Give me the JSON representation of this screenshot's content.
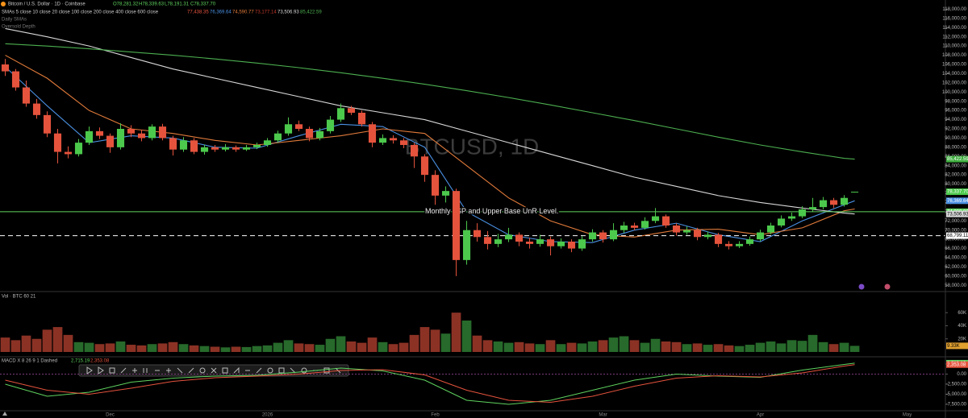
{
  "header": {
    "symbol": "Bitcoin / U.S. Dollar · 1D · Coinbase",
    "ohlc_labels": [
      "O78,281.32",
      "H78,339.63",
      "L78,191.31",
      "C78,337.70"
    ],
    "sma_caption": "SMAs 5 close 10 close 20 close 100 close 200 close 400 close 600 close",
    "sma_values": [
      "77,438.35",
      "76,369.64",
      "74,590.77",
      "73,177.14",
      "73,506.93",
      "85,422.59"
    ],
    "line3": "Daily SMAs",
    "line4": "Oversold Depth",
    "watermark": "BTCUSD, 1D"
  },
  "chart_data": [
    {
      "type": "candlestick",
      "xlim": [
        -0.5,
        89.65
      ],
      "ylim": [
        57000,
        120000
      ],
      "xticks": [
        {
          "value": 10,
          "label": "Dec"
        },
        {
          "value": 25,
          "label": "2026"
        },
        {
          "value": 41,
          "label": "Feb"
        },
        {
          "value": 57,
          "label": "Mar"
        },
        {
          "value": 72,
          "label": "Apr"
        },
        {
          "value": 86,
          "label": "May"
        }
      ],
      "yticks": [
        {
          "value": 58000,
          "label": "58,000.00"
        },
        {
          "value": 60000,
          "label": "60,000.00"
        },
        {
          "value": 62000,
          "label": "62,000.00"
        },
        {
          "value": 64000,
          "label": "64,000.00"
        },
        {
          "value": 66000,
          "label": "66,000.00"
        },
        {
          "value": 68000,
          "label": "68,000.00"
        },
        {
          "value": 70000,
          "label": "70,000.00"
        },
        {
          "value": 72000,
          "label": "72,000.00"
        },
        {
          "value": 74000,
          "label": "74,000.00"
        },
        {
          "value": 76000,
          "label": "76,000.00"
        },
        {
          "value": 78000,
          "label": "78,000.00"
        },
        {
          "value": 80000,
          "label": "80,000.00"
        },
        {
          "value": 82000,
          "label": "82,000.00"
        },
        {
          "value": 84000,
          "label": "84,000.00"
        },
        {
          "value": 86000,
          "label": "86,000.00"
        },
        {
          "value": 88000,
          "label": "88,000.00"
        },
        {
          "value": 90000,
          "label": "90,000.00"
        },
        {
          "value": 92000,
          "label": "92,000.00"
        },
        {
          "value": 94000,
          "label": "94,000.00"
        },
        {
          "value": 96000,
          "label": "96,000.00"
        },
        {
          "value": 98000,
          "label": "98,000.00"
        },
        {
          "value": 100000,
          "label": "100,000.00"
        },
        {
          "value": 102000,
          "label": "102,000.00"
        },
        {
          "value": 104000,
          "label": "104,000.00"
        },
        {
          "value": 106000,
          "label": "106,000.00"
        },
        {
          "value": 108000,
          "label": "108,000.00"
        },
        {
          "value": 110000,
          "label": "110,000.00"
        },
        {
          "value": 112000,
          "label": "112,000.00"
        },
        {
          "value": 114000,
          "label": "114,000.00"
        },
        {
          "value": 116000,
          "label": "116,000.00"
        },
        {
          "value": 118000,
          "label": "118,000.00"
        }
      ],
      "up_color": "#4cc94c",
      "down_color": "#e5533d",
      "ohlc": [
        [
          106000,
          107200,
          103500,
          104500
        ],
        [
          104500,
          105000,
          100300,
          101000
        ],
        [
          101000,
          102500,
          96800,
          97500
        ],
        [
          97500,
          98500,
          94200,
          95000
        ],
        [
          95000,
          95800,
          90200,
          91000
        ],
        [
          91000,
          92000,
          84500,
          87000
        ],
        [
          87000,
          88200,
          85600,
          86500
        ],
        [
          86500,
          89800,
          86000,
          89000
        ],
        [
          89000,
          92500,
          88500,
          91500
        ],
        [
          91500,
          92300,
          89800,
          90500
        ],
        [
          90500,
          91000,
          86800,
          88000
        ],
        [
          88000,
          93200,
          87500,
          92000
        ],
        [
          92000,
          92800,
          90200,
          91000
        ],
        [
          91000,
          91800,
          89300,
          90000
        ],
        [
          90000,
          93000,
          89500,
          92500
        ],
        [
          92500,
          93100,
          89500,
          90000
        ],
        [
          90000,
          90500,
          86200,
          87500
        ],
        [
          87500,
          90200,
          87000,
          89500
        ],
        [
          89500,
          90000,
          86500,
          87000
        ],
        [
          87000,
          88600,
          86400,
          88000
        ],
        [
          88000,
          88500,
          87000,
          87500
        ],
        [
          87500,
          88700,
          87100,
          88000
        ],
        [
          88000,
          88400,
          87000,
          87500
        ],
        [
          87500,
          88500,
          87200,
          88000
        ],
        [
          88000,
          89000,
          87600,
          88500
        ],
        [
          88500,
          90000,
          88100,
          89500
        ],
        [
          89500,
          91600,
          89000,
          91000
        ],
        [
          91000,
          94500,
          90500,
          93000
        ],
        [
          93000,
          93800,
          91500,
          92000
        ],
        [
          92000,
          92500,
          89300,
          90000
        ],
        [
          90000,
          92200,
          89500,
          91500
        ],
        [
          91500,
          94800,
          91000,
          94000
        ],
        [
          94000,
          97500,
          93500,
          96500
        ],
        [
          96500,
          97000,
          95000,
          95500
        ],
        [
          95500,
          96000,
          92500,
          93000
        ],
        [
          93000,
          93500,
          88000,
          89000
        ],
        [
          89000,
          90800,
          88500,
          90000
        ],
        [
          90000,
          90600,
          88800,
          89500
        ],
        [
          89500,
          90000,
          87800,
          88500
        ],
        [
          88500,
          89000,
          83500,
          86000
        ],
        [
          86000,
          86500,
          80500,
          82000
        ],
        [
          82000,
          83000,
          75500,
          77500
        ],
        [
          77500,
          79500,
          76000,
          78500
        ],
        [
          78500,
          79000,
          60000,
          63500
        ],
        [
          63500,
          72000,
          62500,
          70000
        ],
        [
          70000,
          71500,
          67500,
          68500
        ],
        [
          68500,
          69800,
          65800,
          67000
        ],
        [
          67000,
          69200,
          66300,
          68000
        ],
        [
          68000,
          70500,
          67400,
          69000
        ],
        [
          69000,
          69500,
          66500,
          67500
        ],
        [
          67500,
          68300,
          66000,
          67000
        ],
        [
          67000,
          69000,
          66400,
          68000
        ],
        [
          68000,
          68600,
          64500,
          66500
        ],
        [
          66500,
          68200,
          66000,
          67500
        ],
        [
          67500,
          68000,
          65200,
          66000
        ],
        [
          66000,
          68700,
          65500,
          68000
        ],
        [
          68000,
          70200,
          67500,
          69500
        ],
        [
          69500,
          70000,
          67300,
          68000
        ],
        [
          68000,
          71500,
          67600,
          70000
        ],
        [
          70000,
          71800,
          69400,
          71000
        ],
        [
          71000,
          71600,
          70000,
          70500
        ],
        [
          70500,
          72800,
          70100,
          72000
        ],
        [
          72000,
          74800,
          71500,
          73000
        ],
        [
          73000,
          73400,
          70500,
          71000
        ],
        [
          71000,
          71500,
          68800,
          69500
        ],
        [
          69500,
          70800,
          69000,
          70000
        ],
        [
          70000,
          70500,
          67800,
          68500
        ],
        [
          68500,
          69700,
          68000,
          69000
        ],
        [
          69000,
          69400,
          66300,
          67000
        ],
        [
          67000,
          67600,
          65800,
          66500
        ],
        [
          66500,
          67600,
          66100,
          67000
        ],
        [
          67000,
          68600,
          66600,
          68000
        ],
        [
          68000,
          70100,
          67600,
          69500
        ],
        [
          69500,
          71600,
          69100,
          71000
        ],
        [
          71000,
          73200,
          70600,
          72500
        ],
        [
          72500,
          73800,
          72000,
          73000
        ],
        [
          73000,
          75200,
          72600,
          74500
        ],
        [
          74500,
          77000,
          74000,
          75000
        ],
        [
          75000,
          77200,
          74500,
          76500
        ],
        [
          76500,
          77000,
          74800,
          75500
        ],
        [
          75500,
          77600,
          75100,
          77000
        ],
        [
          78281.32,
          78339.63,
          78191.31,
          78337.7
        ]
      ],
      "series": [
        {
          "name": "SMA 10",
          "color": "#4a90e2",
          "x": [
            0,
            4,
            8,
            12,
            16,
            20,
            24,
            28,
            32,
            36,
            40,
            44,
            48,
            52,
            56,
            60,
            64,
            68,
            72,
            76,
            80,
            81
          ],
          "values": [
            105500,
            97000,
            89000,
            90500,
            90000,
            88000,
            87800,
            90500,
            93000,
            92500,
            88000,
            74000,
            69000,
            67500,
            67300,
            70000,
            71500,
            69000,
            67500,
            72000,
            75500,
            76369.64
          ]
        },
        {
          "name": "SMA 20",
          "color": "#e07a3a",
          "x": [
            0,
            4,
            8,
            12,
            16,
            20,
            24,
            28,
            32,
            36,
            40,
            44,
            48,
            52,
            56,
            60,
            64,
            68,
            72,
            76,
            80,
            81
          ],
          "values": [
            108000,
            103000,
            96000,
            92000,
            91000,
            89500,
            88500,
            89500,
            90500,
            92000,
            91000,
            84000,
            77000,
            72000,
            69000,
            68500,
            70000,
            70200,
            69000,
            70500,
            74200,
            74590.77
          ]
        },
        {
          "name": "SMA 200",
          "color": "#d8d8d8",
          "x": [
            0,
            4,
            8,
            12,
            16,
            20,
            24,
            28,
            32,
            36,
            40,
            44,
            48,
            52,
            56,
            60,
            64,
            68,
            72,
            76,
            80,
            81
          ],
          "values": [
            113800,
            112000,
            110000,
            107500,
            105000,
            103000,
            101000,
            99000,
            97000,
            95500,
            94000,
            91500,
            89000,
            86500,
            84000,
            81500,
            79500,
            77500,
            76000,
            74800,
            73700,
            73506.93
          ]
        },
        {
          "name": "SMA 400",
          "color": "#4caf50",
          "x": [
            0,
            4,
            8,
            12,
            16,
            20,
            24,
            28,
            32,
            36,
            40,
            44,
            48,
            52,
            56,
            60,
            64,
            68,
            72,
            76,
            80,
            81
          ],
          "values": [
            110500,
            110000,
            109400,
            108700,
            108000,
            107200,
            106300,
            105300,
            104200,
            103000,
            101700,
            100300,
            98800,
            97200,
            95500,
            93800,
            92000,
            90200,
            88500,
            87000,
            85600,
            85422.59
          ]
        }
      ],
      "levels": [
        {
          "value": 74000,
          "label": "Monthly LSP and Upper Base UnR Level.",
          "color": "#5fd35f",
          "style": "solid"
        },
        {
          "value": 68799.11,
          "color": "#ffffff",
          "style": "dashed"
        }
      ],
      "price_tags": [
        {
          "value": 85422.59,
          "label": "85,422.59",
          "color": "#3fae3f"
        },
        {
          "value": 78337.7,
          "label": "78,337.70",
          "color": "#4cc94c"
        },
        {
          "value": 76369.64,
          "label": "76,369.64",
          "color": "#4a90e2"
        },
        {
          "value": 74000,
          "label": "74,000.00",
          "color": "#5fd35f"
        },
        {
          "value": 73506.93,
          "label": "73,506.93",
          "color": "#d8d8d8"
        },
        {
          "value": 68799.11,
          "label": "68,799.11",
          "color": "#ffffff"
        }
      ]
    },
    {
      "type": "volume",
      "title": "Vol · BTC 60 21",
      "ylim": [
        0,
        75000
      ],
      "yticks": [
        {
          "value": 20000,
          "label": "20K"
        },
        {
          "value": 40000,
          "label": "40K"
        },
        {
          "value": 60000,
          "label": "60K"
        }
      ],
      "values": [
        22000,
        18000,
        25000,
        20000,
        34000,
        38000,
        26000,
        15000,
        14000,
        12000,
        13000,
        16000,
        11000,
        10000,
        12000,
        13000,
        15000,
        12000,
        10000,
        9000,
        8000,
        7000,
        8000,
        7500,
        9000,
        10000,
        14000,
        18000,
        13000,
        12000,
        11000,
        20000,
        24000,
        16000,
        14000,
        22000,
        15000,
        12000,
        14000,
        26000,
        38000,
        34000,
        28000,
        60000,
        48000,
        25000,
        18000,
        16000,
        14000,
        15000,
        13000,
        12000,
        18000,
        12000,
        14000,
        13000,
        16000,
        18000,
        22000,
        24000,
        18000,
        14000,
        20000,
        16000,
        15000,
        12000,
        13000,
        11000,
        12000,
        10000,
        9000,
        11000,
        14000,
        16000,
        13000,
        18000,
        17000,
        26000,
        15000,
        12000,
        14000,
        9330
      ],
      "last_label": "9.33K"
    },
    {
      "type": "macd",
      "title": "MACD X 8 26 9 1 Dashed",
      "ylim": [
        -8700,
        3300
      ],
      "yticks": [
        {
          "value": 2500,
          "label": "2,500.00"
        },
        {
          "value": 0,
          "label": "0.00"
        },
        {
          "value": -2500,
          "label": "-2,500.00"
        },
        {
          "value": -5000,
          "label": "-5,000.00"
        },
        {
          "value": -7500,
          "label": "-7,500.00"
        }
      ],
      "series": [
        {
          "name": "MACD",
          "color": "#5fd35f",
          "x": [
            0,
            4,
            8,
            12,
            16,
            20,
            24,
            28,
            32,
            36,
            40,
            44,
            48,
            52,
            56,
            60,
            64,
            68,
            72,
            76,
            80,
            81
          ],
          "values": [
            -2500,
            -5500,
            -4500,
            -2000,
            -1000,
            -500,
            -300,
            500,
            1500,
            800,
            -1500,
            -6500,
            -7500,
            -6500,
            -4000,
            -1500,
            0,
            -500,
            -800,
            1000,
            2400,
            2715.19
          ],
          "last_label": "2,715.19"
        },
        {
          "name": "Signal",
          "color": "#e5533d",
          "x": [
            0,
            4,
            8,
            12,
            16,
            20,
            24,
            28,
            32,
            36,
            40,
            44,
            48,
            52,
            56,
            60,
            64,
            68,
            72,
            76,
            80,
            81
          ],
          "values": [
            -1500,
            -4000,
            -5000,
            -3500,
            -1800,
            -900,
            -500,
            0,
            900,
            1100,
            -200,
            -4000,
            -6500,
            -7000,
            -5500,
            -3000,
            -1000,
            -400,
            -700,
            300,
            2000,
            2353.08
          ],
          "last_label": "2,353.08"
        }
      ]
    }
  ]
}
